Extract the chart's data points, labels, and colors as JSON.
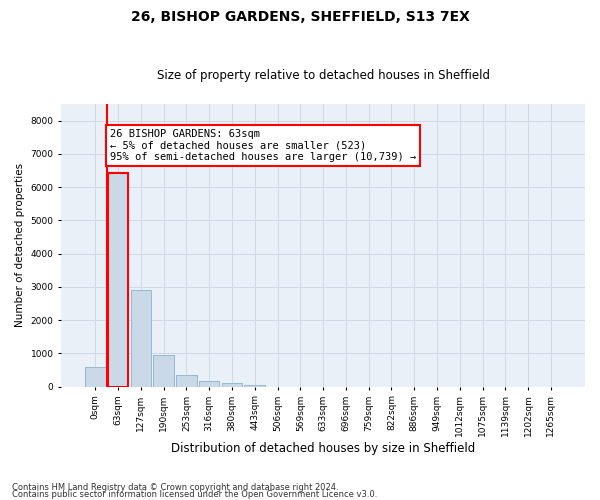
{
  "title1": "26, BISHOP GARDENS, SHEFFIELD, S13 7EX",
  "title2": "Size of property relative to detached houses in Sheffield",
  "xlabel": "Distribution of detached houses by size in Sheffield",
  "ylabel": "Number of detached properties",
  "categories": [
    "0sqm",
    "63sqm",
    "127sqm",
    "190sqm",
    "253sqm",
    "316sqm",
    "380sqm",
    "443sqm",
    "506sqm",
    "569sqm",
    "633sqm",
    "696sqm",
    "759sqm",
    "822sqm",
    "886sqm",
    "949sqm",
    "1012sqm",
    "1075sqm",
    "1139sqm",
    "1202sqm",
    "1265sqm"
  ],
  "values": [
    580,
    6430,
    2900,
    960,
    350,
    160,
    100,
    65,
    0,
    0,
    0,
    0,
    0,
    0,
    0,
    0,
    0,
    0,
    0,
    0,
    0
  ],
  "bar_color": "#c9d9e8",
  "bar_edge_color": "#8ab0cc",
  "highlight_bar_index": 1,
  "highlight_edge_color": "red",
  "vline_x": 0.5,
  "annotation_text": "26 BISHOP GARDENS: 63sqm\n← 5% of detached houses are smaller (523)\n95% of semi-detached houses are larger (10,739) →",
  "annotation_box_color": "white",
  "annotation_box_edge": "red",
  "ylim": [
    0,
    8500
  ],
  "yticks": [
    0,
    1000,
    2000,
    3000,
    4000,
    5000,
    6000,
    7000,
    8000
  ],
  "grid_color": "#d0d8e8",
  "plot_bg_color": "#eaf0f8",
  "footer1": "Contains HM Land Registry data © Crown copyright and database right 2024.",
  "footer2": "Contains public sector information licensed under the Open Government Licence v3.0."
}
